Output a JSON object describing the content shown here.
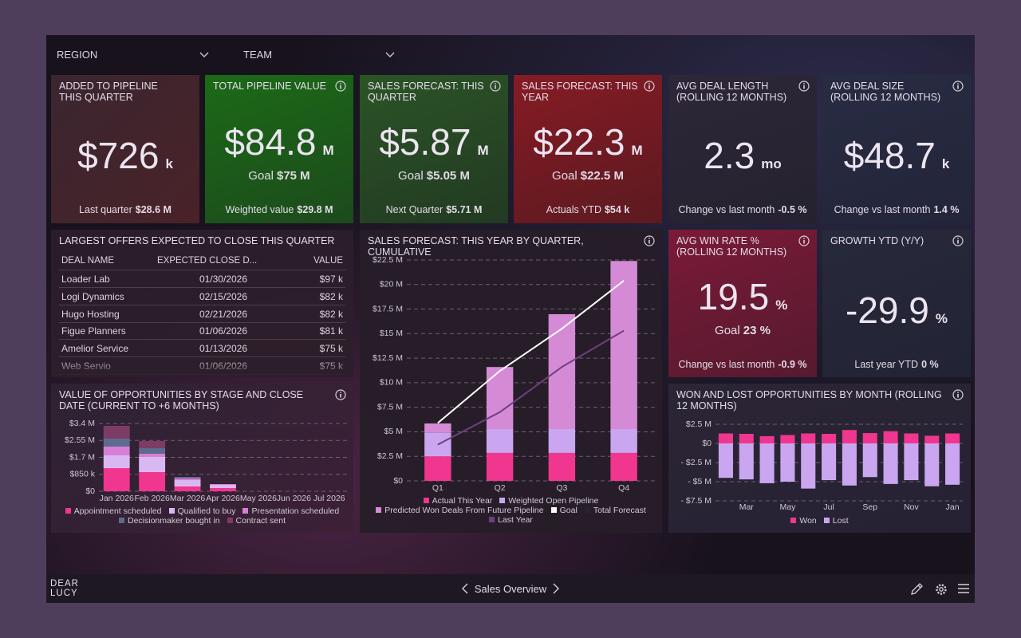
{
  "filters": [
    "REGION",
    "TEAM"
  ],
  "kpis": [
    {
      "title": "ADDED TO PIPELINE THIS QUARTER",
      "value": "$726",
      "unit": "k",
      "footer_label": "Last quarter",
      "footer_value": "$28.6 M"
    },
    {
      "title": "TOTAL PIPELINE VALUE",
      "value": "$84.8",
      "unit": "M",
      "goal_label": "Goal",
      "goal": "$75 M",
      "footer_label": "Weighted value",
      "footer_value": "$29.8 M"
    },
    {
      "title": "SALES FORECAST: THIS QUARTER",
      "value": "$5.87",
      "unit": "M",
      "goal_label": "Goal",
      "goal": "$5.05 M",
      "footer_label": "Next Quarter",
      "footer_value": "$5.71 M"
    },
    {
      "title": "SALES FORECAST: THIS YEAR",
      "value": "$22.3",
      "unit": "M",
      "goal_label": "Goal",
      "goal": "$22.5 M",
      "footer_label": "Actuals YTD",
      "footer_value": "$54 k"
    },
    {
      "title": "AVG DEAL LENGTH (ROLLING 12 MONTHS)",
      "value": "2.3",
      "unit": "mo",
      "footer_label": "Change vs last month",
      "footer_value": "-0.5 %"
    },
    {
      "title": "AVG DEAL SIZE (ROLLING 12 MONTHS)",
      "value": "$48.7",
      "unit": "k",
      "footer_label": "Change vs last month",
      "footer_value": "1.4 %"
    },
    {
      "title": "AVG WIN RATE % (ROLLING 12 MONTHS)",
      "value": "19.5",
      "unit": "%",
      "goal_label": "Goal",
      "goal": "23 %",
      "footer_label": "Change vs last month",
      "footer_value": "-0.9 %"
    },
    {
      "title": "GROWTH YTD (Y/Y)",
      "value": "-29.9",
      "unit": "%",
      "footer_label": "Last year YTD",
      "footer_value": "0 %"
    }
  ],
  "table": {
    "title": "LARGEST OFFERS EXPECTED TO CLOSE THIS QUARTER",
    "columns": [
      "DEAL NAME",
      "EXPECTED CLOSE D...",
      "VALUE"
    ],
    "rows": [
      [
        "Loader Lab",
        "01/30/2026",
        "$97 k"
      ],
      [
        "Logi Dynamics",
        "02/15/2026",
        "$82 k"
      ],
      [
        "Hugo Hosting",
        "02/21/2026",
        "$82 k"
      ],
      [
        "Figue Planners",
        "01/06/2026",
        "$81 k"
      ],
      [
        "Amelior Service",
        "01/13/2026",
        "$75 k"
      ],
      [
        "Web Servio",
        "01/06/2026",
        "$75 k"
      ]
    ]
  },
  "chart_data": [
    {
      "type": "bar",
      "title": "VALUE OF OPPORTUNITIES BY STAGE AND CLOSE DATE (CURRENT TO +6 MONTHS)",
      "categories": [
        "Jan 2026",
        "Feb 2026",
        "Mar 2026",
        "Apr 2026",
        "May 2026",
        "Jun 2026",
        "Jul 2026"
      ],
      "series": [
        {
          "name": "Appointment scheduled",
          "color": "#f0368e",
          "values": [
            1160000,
            960000,
            240000,
            160000,
            0,
            0,
            0
          ]
        },
        {
          "name": "Qualified to buy",
          "color": "#d9b8f2",
          "values": [
            640000,
            760000,
            320000,
            160000,
            0,
            0,
            0
          ]
        },
        {
          "name": "Presentation scheduled",
          "color": "#d77fd6",
          "values": [
            440000,
            160000,
            80000,
            40000,
            0,
            0,
            0
          ]
        },
        {
          "name": "Decisionmaker bought in",
          "color": "#5d6b8e",
          "values": [
            400000,
            280000,
            80000,
            0,
            0,
            0,
            0
          ]
        },
        {
          "name": "Contract sent",
          "color": "#7d3c66",
          "values": [
            640000,
            360000,
            0,
            0,
            0,
            0,
            0
          ]
        }
      ],
      "ylim": [
        0,
        3400000
      ],
      "yticks": [
        {
          "value": 0,
          "label": "$0"
        },
        {
          "value": 850000,
          "label": "$850 k"
        },
        {
          "value": 1700000,
          "label": "$1.7 M"
        },
        {
          "value": 2550000,
          "label": "$2.55 M"
        },
        {
          "value": 3400000,
          "label": "$3.4 M"
        }
      ],
      "grid": true
    },
    {
      "type": "combo",
      "title": "SALES FORECAST: THIS YEAR BY QUARTER, CUMULATIVE",
      "categories": [
        "Q1",
        "Q2",
        "Q3",
        "Q4"
      ],
      "series": [
        {
          "name": "Actual This Year",
          "kind": "bar",
          "color": "#f0368e",
          "values": [
            2500000,
            2850000,
            2850000,
            2850000
          ]
        },
        {
          "name": "Weighted Open Pipeline",
          "kind": "bar",
          "color": "#c9a6ef",
          "values": [
            2400000,
            2430000,
            2430000,
            2430000
          ]
        },
        {
          "name": "Predicted Won Deals From Future Pipeline",
          "kind": "bar",
          "color": "#d58ad6",
          "values": [
            950000,
            6320000,
            11700000,
            17120000
          ]
        },
        {
          "name": "Goal",
          "kind": "line",
          "color": "#ffffff",
          "values": [
            5900000,
            11200000,
            15500000,
            20400000
          ]
        },
        {
          "name": "Total Forecast",
          "kind": "line",
          "color": "#2a2230",
          "values": [
            null,
            null,
            null,
            null
          ]
        },
        {
          "name": "Last Year",
          "kind": "line",
          "color": "#6e3f7e",
          "values": [
            3700000,
            7000000,
            11600000,
            15300000
          ]
        }
      ],
      "ylim": [
        0,
        22500000
      ],
      "yticks": [
        {
          "value": 0,
          "label": "$0"
        },
        {
          "value": 2500000,
          "label": "$2.5 M"
        },
        {
          "value": 5000000,
          "label": "$5 M"
        },
        {
          "value": 7500000,
          "label": "$7.5 M"
        },
        {
          "value": 10000000,
          "label": "$10 M"
        },
        {
          "value": 12500000,
          "label": "$12.5 M"
        },
        {
          "value": 15000000,
          "label": "$15 M"
        },
        {
          "value": 17500000,
          "label": "$17.5 M"
        },
        {
          "value": 20000000,
          "label": "$20 M"
        },
        {
          "value": 22500000,
          "label": "$22.5 M"
        }
      ],
      "grid": true
    },
    {
      "type": "bar",
      "title": "WON AND LOST OPPORTUNITIES BY MONTH (ROLLING 12 MONTHS)",
      "categories": [
        null,
        "Mar",
        null,
        "May",
        null,
        "Jul",
        null,
        "Sep",
        null,
        "Nov",
        null,
        "Jan"
      ],
      "series": [
        {
          "name": "Won",
          "color": "#f0368e",
          "values": [
            1300000,
            1250000,
            950000,
            1100000,
            1300000,
            1250000,
            1750000,
            1350000,
            1600000,
            1300000,
            1000000,
            1300000
          ]
        },
        {
          "name": "Lost",
          "color": "#c9a6ef",
          "values": [
            -4500000,
            -4700000,
            -5200000,
            -5000000,
            -5900000,
            -4800000,
            -5500000,
            -4400000,
            -5300000,
            -4800000,
            -5600000,
            -5400000
          ]
        }
      ],
      "ylim": [
        -7500000,
        2500000
      ],
      "yticks": [
        {
          "value": 2500000,
          "label": "$2.5 M"
        },
        {
          "value": 0,
          "label": "$0"
        },
        {
          "value": -2500000,
          "label": "- $2.5 M"
        },
        {
          "value": -5000000,
          "label": "- $5 M"
        },
        {
          "value": -7500000,
          "label": "- $7.5 M"
        }
      ],
      "grid": true
    }
  ],
  "footer": {
    "logo": [
      "DEAR",
      "LUCY"
    ],
    "page_title": "Sales Overview"
  }
}
